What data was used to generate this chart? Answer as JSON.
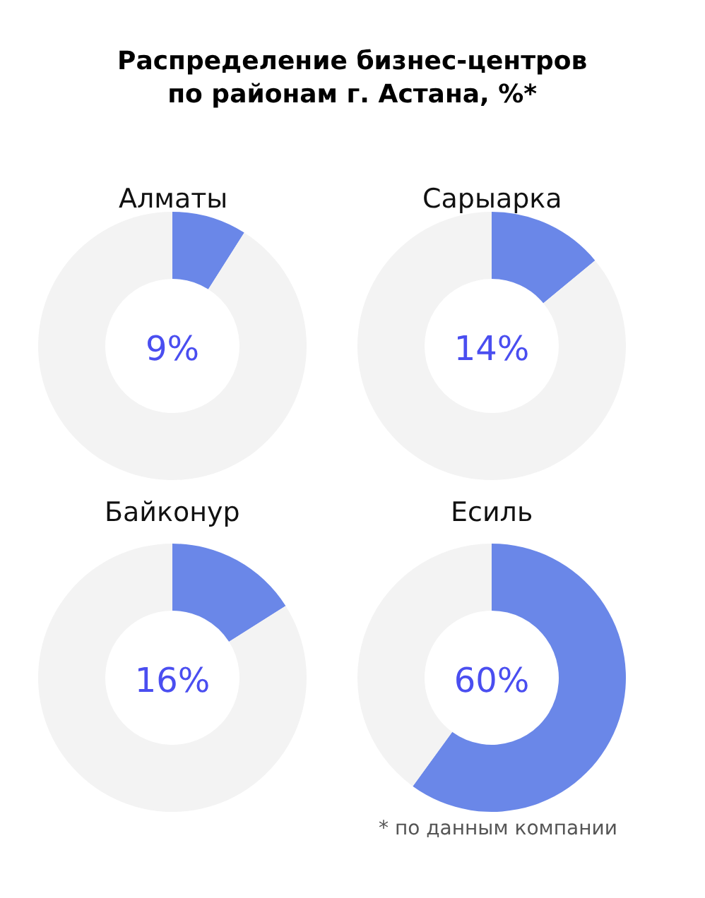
{
  "chart_data": [
    {
      "type": "other",
      "title": "Распределение бизнес-центров\nпо районам г. Астана, %*"
    },
    {
      "type": "donut",
      "title": "Алматы",
      "categories": [
        null,
        null
      ],
      "values": [
        9,
        91
      ],
      "colors": [
        "#6a87e8",
        "#f3f3f3"
      ],
      "annotations": [
        "9%"
      ]
    },
    {
      "type": "donut",
      "title": "Сарыарка",
      "categories": [
        null,
        null
      ],
      "values": [
        14,
        86
      ],
      "colors": [
        "#6a87e8",
        "#f3f3f3"
      ],
      "annotations": [
        "14%"
      ]
    },
    {
      "type": "donut",
      "title": "Байконур",
      "categories": [
        null,
        null
      ],
      "values": [
        16,
        84
      ],
      "colors": [
        "#6a87e8",
        "#f3f3f3"
      ],
      "annotations": [
        "16%"
      ]
    },
    {
      "type": "donut",
      "title": "Есиль",
      "categories": [
        null,
        null
      ],
      "values": [
        60,
        40
      ],
      "colors": [
        "#6a87e8",
        "#f3f3f3"
      ],
      "annotations": [
        "60%"
      ]
    },
    {
      "type": "other",
      "annotations": [
        "* по данным компании"
      ]
    }
  ]
}
